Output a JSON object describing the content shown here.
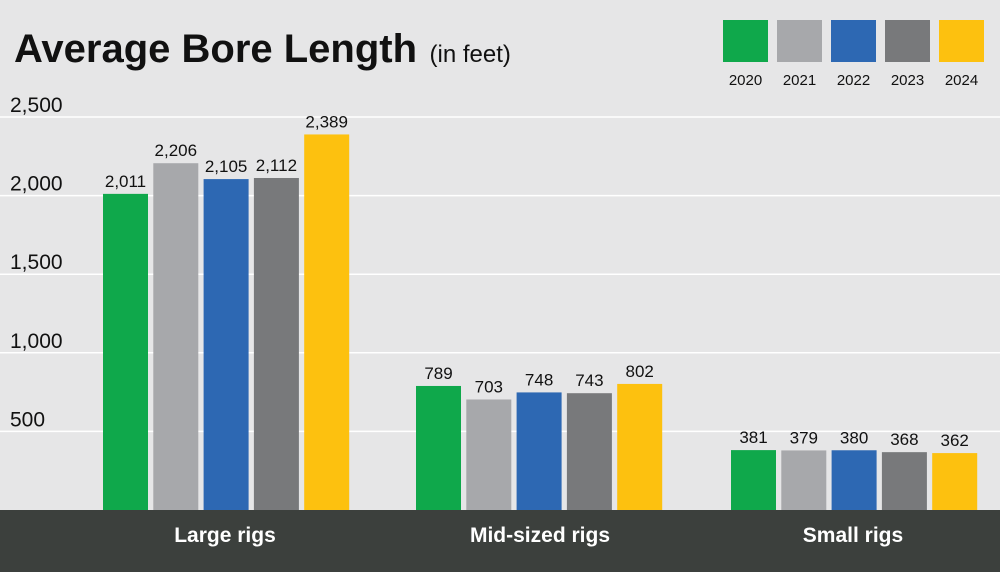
{
  "chart_data": {
    "type": "bar",
    "title": "Average Bore Length",
    "subtitle": "(in feet)",
    "categories": [
      "Large rigs",
      "Mid-sized rigs",
      "Small rigs"
    ],
    "series": [
      {
        "name": "2020",
        "color": "#0fa84b",
        "values": [
          2011,
          789,
          381
        ]
      },
      {
        "name": "2021",
        "color": "#a7a8ab",
        "values": [
          2206,
          703,
          379
        ]
      },
      {
        "name": "2022",
        "color": "#2d68b3",
        "values": [
          2105,
          748,
          380
        ]
      },
      {
        "name": "2023",
        "color": "#78797b",
        "values": [
          2112,
          743,
          368
        ]
      },
      {
        "name": "2024",
        "color": "#fdc10f",
        "values": [
          2389,
          802,
          362
        ]
      }
    ],
    "value_labels": [
      [
        "2,011",
        "789",
        "381"
      ],
      [
        "2,206",
        "703",
        "379"
      ],
      [
        "2,105",
        "748",
        "380"
      ],
      [
        "2,112",
        "743",
        "368"
      ],
      [
        "2,389",
        "802",
        "362"
      ]
    ],
    "yticks": [
      500,
      1000,
      1500,
      2000,
      2500
    ],
    "ytick_labels": [
      "500",
      "1,000",
      "1,500",
      "2,000",
      "2,500"
    ],
    "ylim": [
      0,
      2500
    ],
    "grid": true,
    "legend_position": "top-right",
    "colors": {
      "background": "#e6e6e7",
      "gridline": "#ffffff",
      "category_band": "#3c403d",
      "category_text": "#ffffff"
    }
  }
}
